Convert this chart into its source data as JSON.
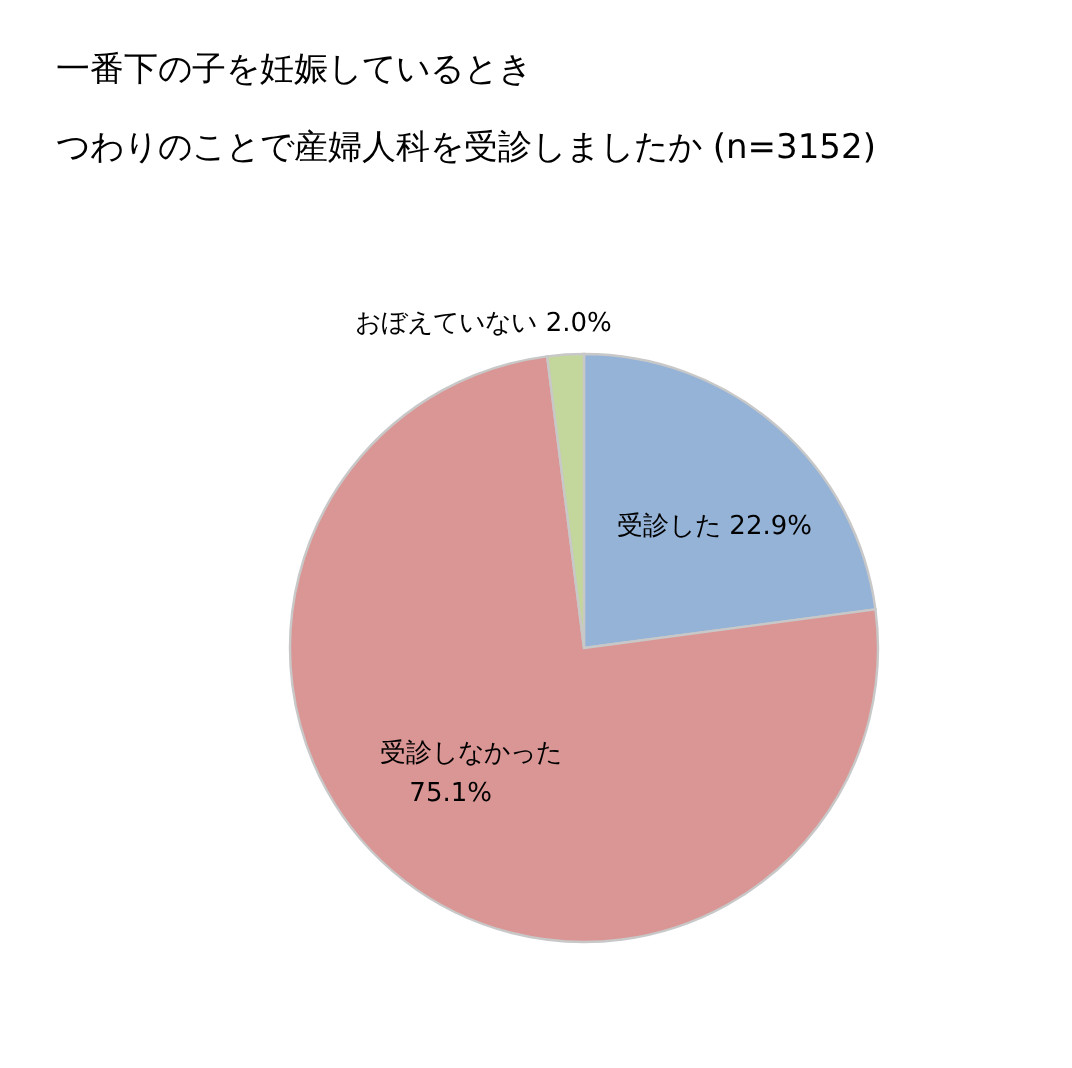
{
  "chart_data": {
    "type": "pie",
    "title": "一番下の子を妊娠しているとき",
    "subtitle": "つわりのことで産婦人科を受診しましたか (n=3152)",
    "categories": [
      "受診した",
      "受診しなかった",
      "おぼえていない"
    ],
    "values": [
      22.9,
      75.1,
      2.0
    ],
    "value_labels": [
      "22.9%",
      "75.1%",
      "2.0%"
    ],
    "colors": [
      "#95b3d7",
      "#d99694",
      "#c3d69b"
    ]
  }
}
